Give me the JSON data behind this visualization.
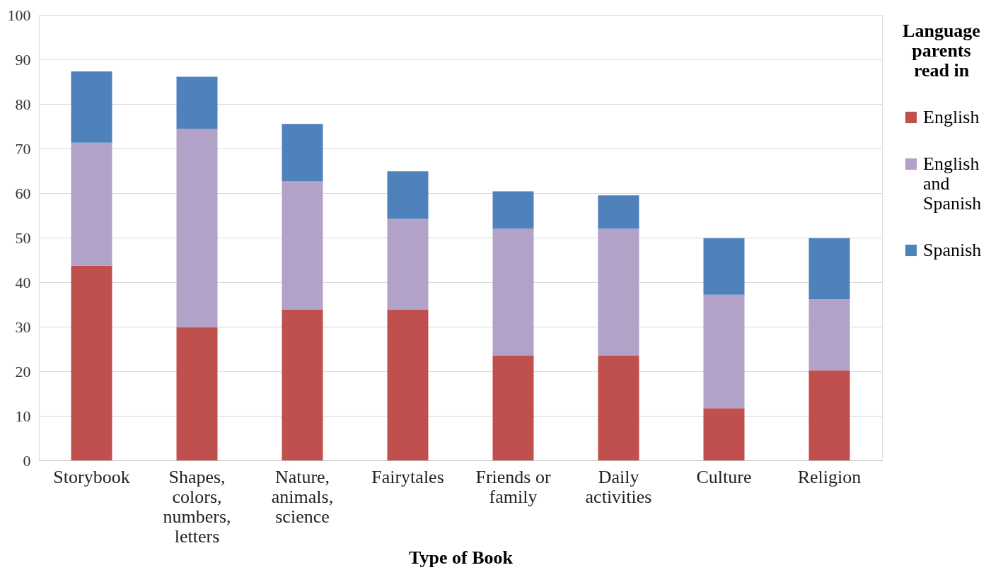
{
  "chart_data": {
    "type": "bar",
    "stacked": true,
    "xlabel": "Type of Book",
    "legend_title": "Language parents read in",
    "legend": "right",
    "categories": [
      "Storybook",
      "Shapes, colors, numbers, letters",
      "Nature, animals, science",
      "Fairytales",
      "Friends or family",
      "Daily activities",
      "Culture",
      "Religion"
    ],
    "series": [
      {
        "name": "English",
        "color": "#c0504d",
        "values": [
          43.7,
          29.9,
          33.9,
          33.9,
          23.5,
          23.5,
          11.7,
          20.2
        ]
      },
      {
        "name": "English and Spanish",
        "color": "#b2a2c7",
        "values": [
          27.6,
          44.5,
          28.7,
          20.3,
          28.5,
          28.5,
          25.5,
          16.0
        ]
      },
      {
        "name": "Spanish",
        "color": "#4f81bd",
        "values": [
          16.0,
          11.7,
          12.9,
          10.7,
          8.4,
          7.5,
          12.7,
          13.7
        ]
      }
    ],
    "ylim": [
      0,
      100
    ],
    "yticks": [
      0,
      10,
      20,
      30,
      40,
      50,
      60,
      70,
      80,
      90,
      100
    ],
    "grid": "y"
  }
}
